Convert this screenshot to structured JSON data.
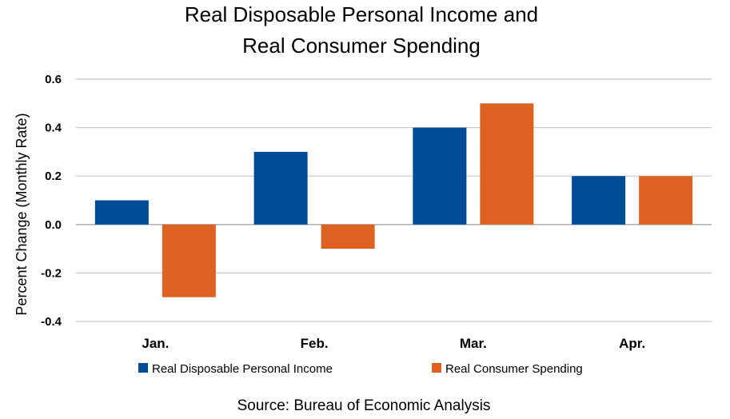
{
  "chart_data": {
    "type": "bar",
    "title": [
      "Real Disposable Personal Income and",
      "Real Consumer Spending"
    ],
    "xlabel": "",
    "ylabel": "Percent Change (Monthly Rate)",
    "categories": [
      "Jan.",
      "Feb.",
      "Mar.",
      "Apr."
    ],
    "series": [
      {
        "name": "Real Disposable Personal Income",
        "values": [
          0.1,
          0.3,
          0.4,
          0.2
        ],
        "color": "#004b98"
      },
      {
        "name": "Real Consumer Spending",
        "values": [
          -0.3,
          -0.1,
          0.5,
          0.2
        ],
        "color": "#dd6221"
      }
    ],
    "ylim": [
      -0.4,
      0.6
    ],
    "yticks": [
      0.6,
      0.4,
      0.2,
      0.0,
      -0.2,
      -0.4
    ],
    "ytick_labels": [
      "0.6",
      "0.4",
      "0.2",
      "0.0",
      "-0.2",
      "-0.4"
    ],
    "grid": true,
    "legend_position": "bottom",
    "source": "Source:  Bureau of Economic Analysis"
  }
}
